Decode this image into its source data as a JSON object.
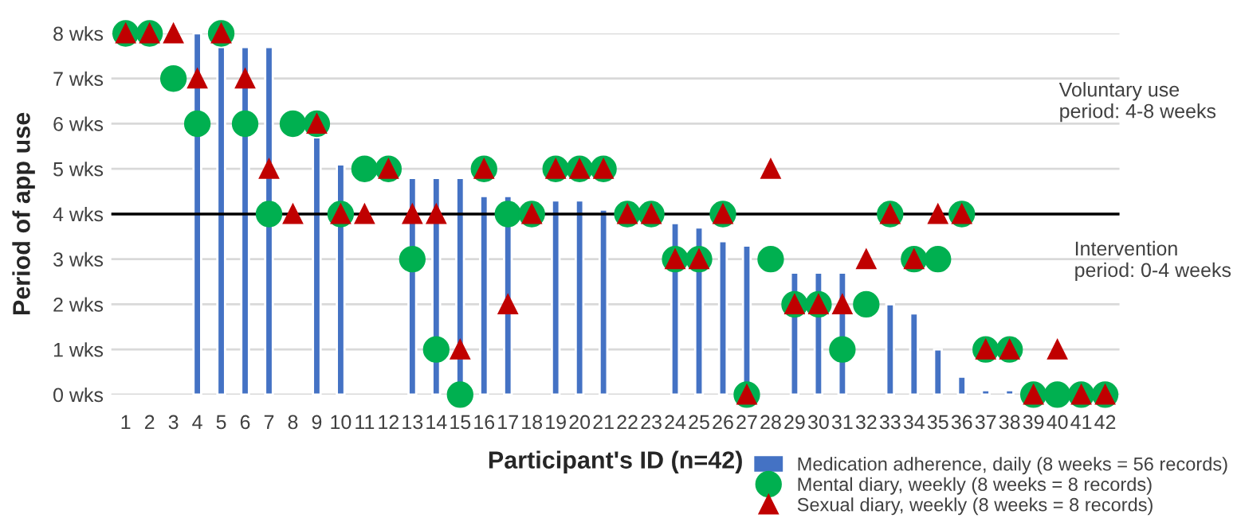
{
  "chart_data": {
    "type": "bar",
    "xlabel": "Participant's ID (n=42)",
    "ylabel": "Period of app use",
    "categories": [
      "1",
      "2",
      "3",
      "4",
      "5",
      "6",
      "7",
      "8",
      "9",
      "10",
      "11",
      "12",
      "13",
      "14",
      "15",
      "16",
      "17",
      "18",
      "19",
      "20",
      "21",
      "22",
      "23",
      "24",
      "25",
      "26",
      "27",
      "28",
      "29",
      "30",
      "31",
      "32",
      "33",
      "34",
      "35",
      "36",
      "37",
      "38",
      "39",
      "40",
      "41",
      "42"
    ],
    "series": [
      {
        "name": "Medication adherence, daily (8 weeks = 56 records)",
        "color": "#4472c4",
        "values": [
          null,
          null,
          null,
          8,
          7.7,
          7.7,
          7.7,
          null,
          5.7,
          5.1,
          null,
          null,
          4.8,
          4.8,
          4.8,
          4.4,
          4.4,
          null,
          4.3,
          4.3,
          4.1,
          null,
          null,
          3.8,
          3.7,
          3.4,
          3.3,
          null,
          2.7,
          2.7,
          2.7,
          null,
          2,
          1.8,
          1,
          0.4,
          0.1,
          0.1,
          null,
          null,
          null,
          null
        ]
      },
      {
        "name": "Mental diary, weekly (8 weeks = 8 records)",
        "type": "scatter",
        "marker": "circle",
        "color": "#00b050",
        "values": [
          8,
          8,
          7,
          6,
          8,
          6,
          4,
          6,
          6,
          4,
          5,
          5,
          3,
          1,
          0,
          5,
          4,
          4,
          5,
          5,
          5,
          4,
          4,
          3,
          3,
          4,
          0,
          3,
          2,
          2,
          1,
          2,
          4,
          3,
          3,
          4,
          1,
          1,
          0,
          0,
          0,
          0
        ]
      },
      {
        "name": "Sexual diary, weekly (8 weeks = 8 records)",
        "type": "scatter",
        "marker": "triangle",
        "color": "#c00000",
        "values": [
          8,
          8,
          8,
          7,
          8,
          7,
          5,
          4,
          6,
          4,
          4,
          5,
          4,
          4,
          1,
          5,
          2,
          4,
          5,
          5,
          5,
          4,
          4,
          3,
          3,
          4,
          0,
          5,
          2,
          2,
          2,
          3,
          4,
          3,
          4,
          4,
          1,
          1,
          0,
          1,
          0,
          0
        ]
      }
    ],
    "ylim": [
      0,
      8
    ],
    "yticks": [
      {
        "value": 0,
        "label": "0 wks"
      },
      {
        "value": 1,
        "label": "1 wks"
      },
      {
        "value": 2,
        "label": "2 wks"
      },
      {
        "value": 3,
        "label": "3 wks"
      },
      {
        "value": 4,
        "label": "4 wks"
      },
      {
        "value": 5,
        "label": "5 wks"
      },
      {
        "value": 6,
        "label": "6 wks"
      },
      {
        "value": 7,
        "label": "7 wks"
      },
      {
        "value": 8,
        "label": "8 wks"
      }
    ],
    "grid": "y",
    "legend": "bottom right",
    "ref_lines": [
      {
        "axis": "y",
        "value": 4,
        "color": "#000000"
      }
    ],
    "annotations": [
      "Voluntary use period: 4-8 weeks",
      "Intervention period: 0-4 weeks"
    ]
  }
}
